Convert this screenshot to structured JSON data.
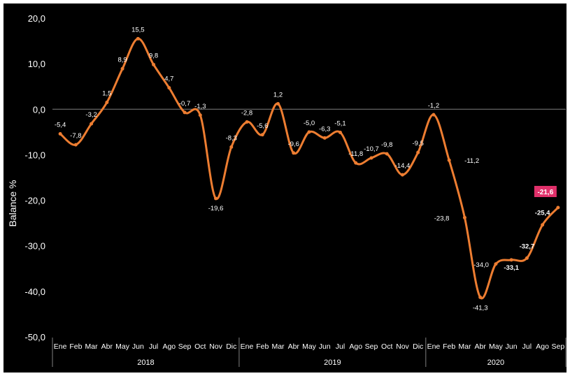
{
  "chart_data": {
    "type": "line",
    "ylabel": "Balance %",
    "ylim": [
      -50,
      20
    ],
    "yticks": [
      "20,0",
      "10,0",
      "0,0",
      "-10,0",
      "-20,0",
      "-30,0",
      "-40,0",
      "-50,0"
    ],
    "ytick_values": [
      20,
      10,
      0,
      -10,
      -20,
      -30,
      -40,
      -50
    ],
    "categories": [
      "Ene",
      "Feb",
      "Mar",
      "Abr",
      "May",
      "Jun",
      "Jul",
      "Ago",
      "Sep",
      "Oct",
      "Nov",
      "Dic",
      "Ene",
      "Feb",
      "Mar",
      "Abr",
      "May",
      "Jun",
      "Jul",
      "Ago",
      "Sep",
      "Oct",
      "Nov",
      "Dic",
      "Ene",
      "Feb",
      "Mar",
      "Abr",
      "May",
      "Jun",
      "Jul",
      "Ago",
      "Sep"
    ],
    "years": [
      {
        "label": "2018",
        "months": 12
      },
      {
        "label": "2019",
        "months": 12
      },
      {
        "label": "2020",
        "months": 9
      }
    ],
    "series": [
      {
        "values": [
          -5.4,
          -7.8,
          -3.2,
          1.5,
          8.9,
          15.5,
          9.8,
          4.7,
          -0.7,
          -1.3,
          -19.6,
          -8.3,
          -2.8,
          -5.6,
          1.2,
          -9.6,
          -5.0,
          -6.3,
          -5.1,
          -11.8,
          -10.7,
          -9.8,
          -14.4,
          -9.5,
          -1.2,
          -11.2,
          -23.8,
          -41.3,
          -34.0,
          -33.1,
          -32.7,
          -25.4,
          -21.6
        ],
        "labels": [
          "-5,4",
          "-7,8",
          "-3,2",
          "1,5",
          "8,9",
          "15,5",
          "9,8",
          "4,7",
          "-0,7",
          "-1,3",
          "-19,6",
          "-8,3",
          "-2,8",
          "-5,6",
          "1,2",
          "-9,6",
          "-5,0",
          "-6,3",
          "-5,1",
          "-11,8",
          "-10,7",
          "-9,8",
          "-14,4",
          "-9,5",
          "-1,2",
          "-11,2",
          "-23,8",
          "-41,3",
          "-34,0",
          "-33,1",
          "-32,7",
          "-25,4",
          "-21,6"
        ],
        "bold_last": 4,
        "highlight_last": true
      }
    ],
    "colors": {
      "background": "#000000",
      "line": "#ED7D31",
      "text": "#FFFFFF",
      "axis": "#7F7F7F",
      "highlight": "#E0306A"
    },
    "grid": false,
    "legend": "none"
  }
}
